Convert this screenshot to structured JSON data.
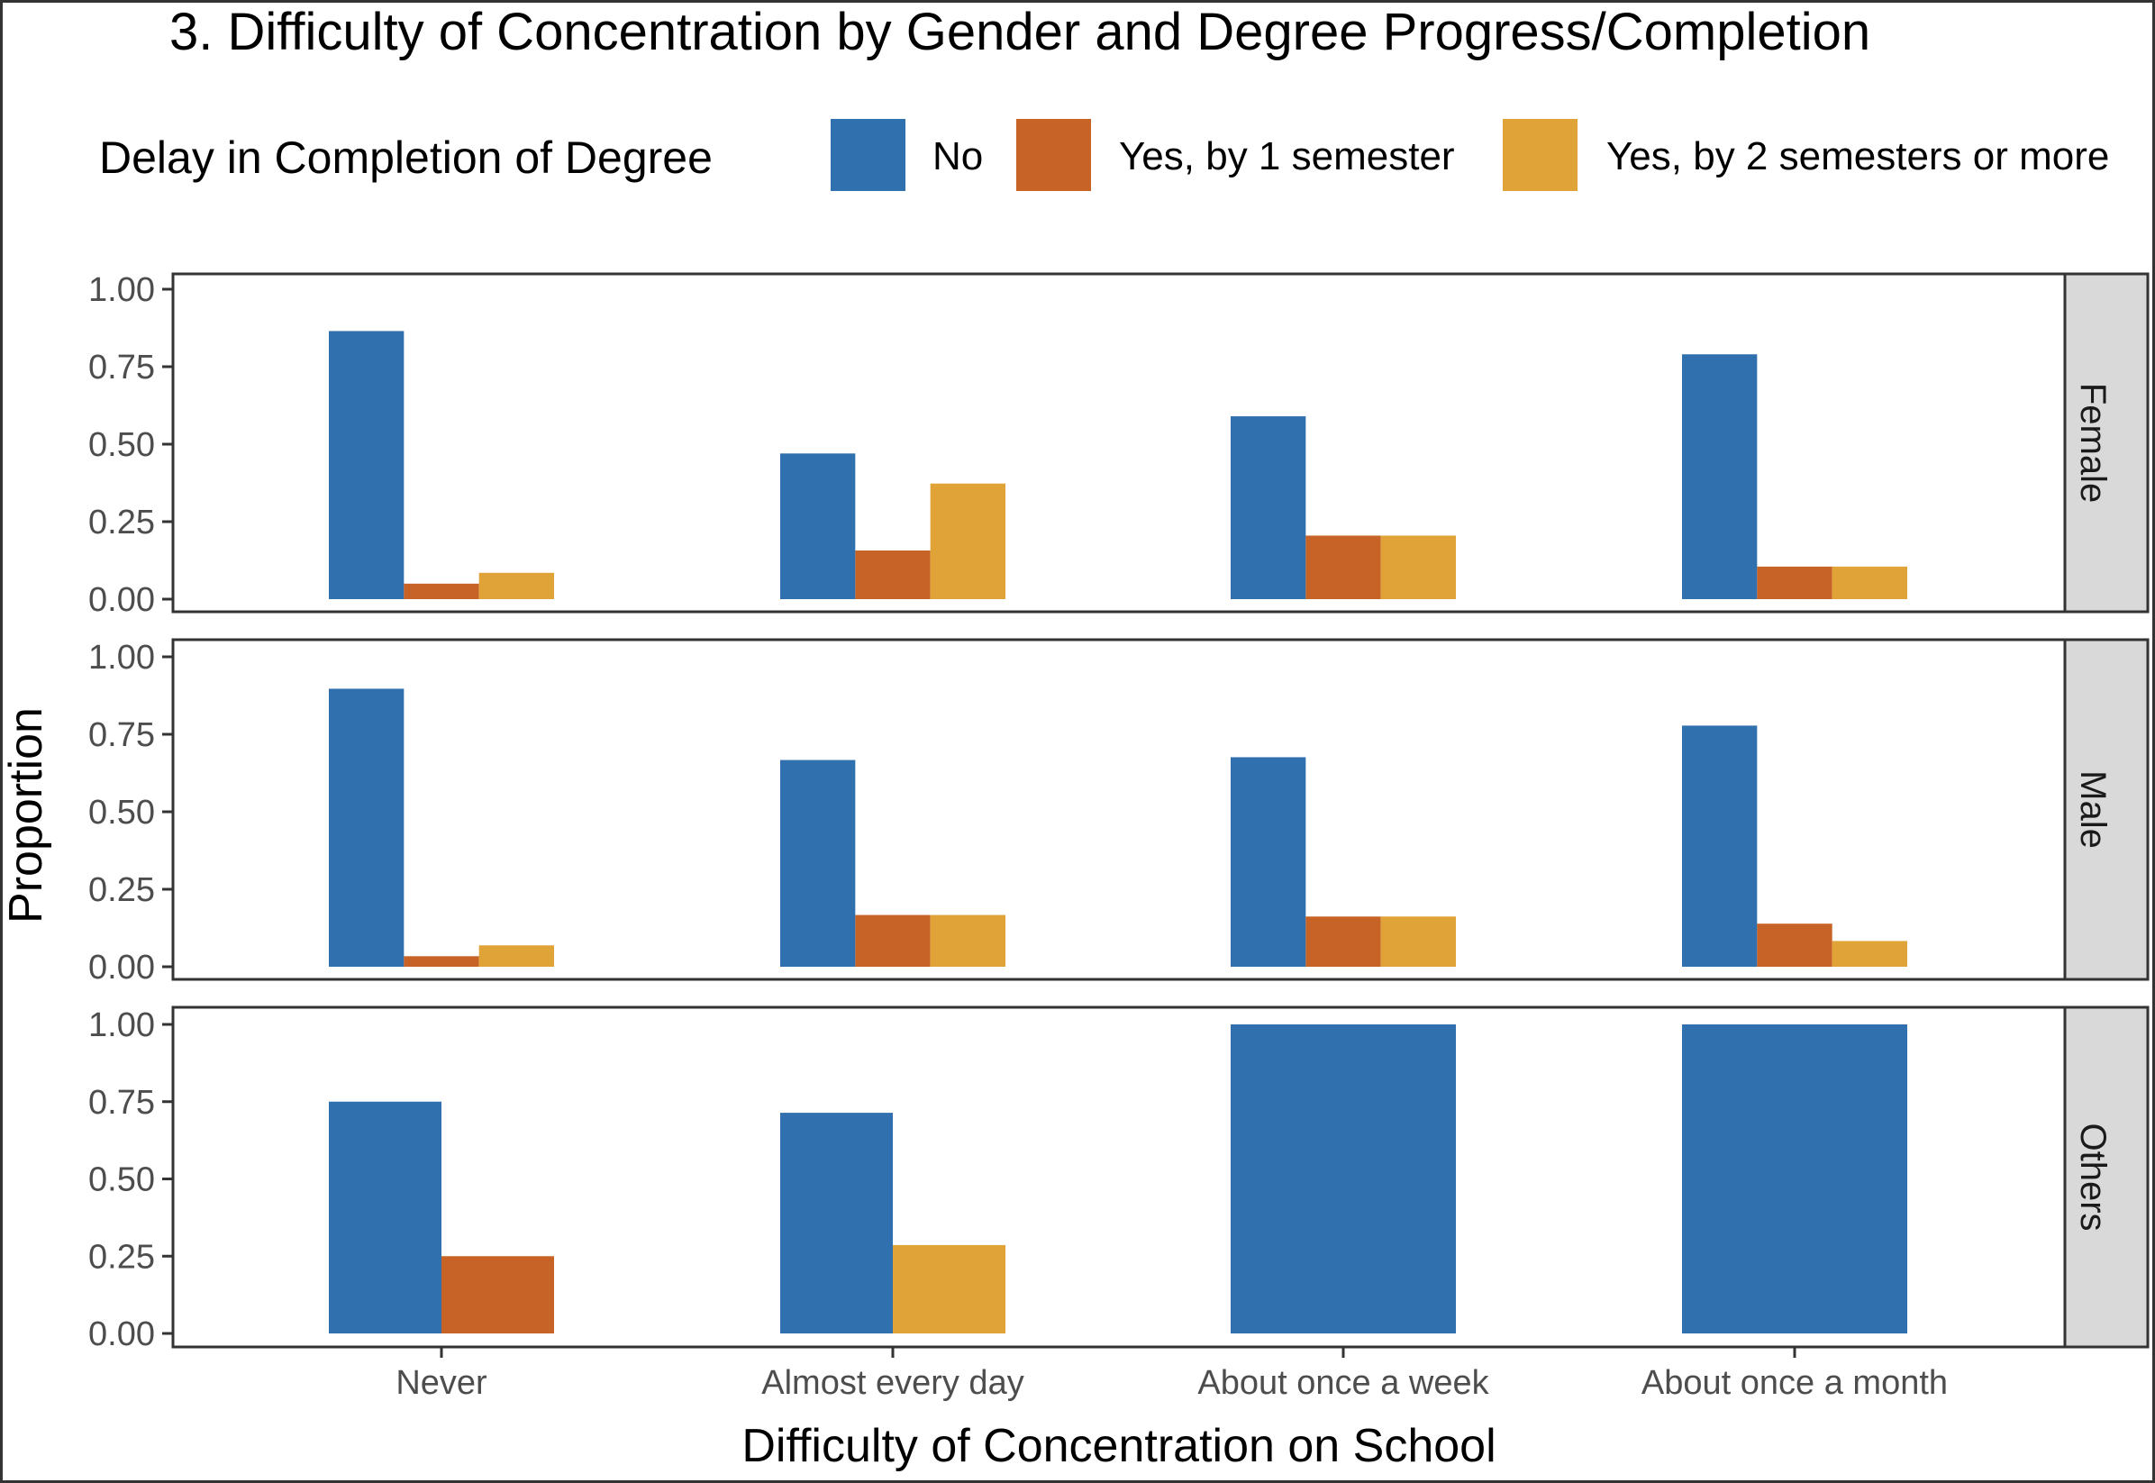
{
  "chart_data": {
    "type": "bar",
    "title": "3. Difficulty of Concentration by Gender and Degree Progress/Completion",
    "xlabel": "Difficulty of Concentration on School",
    "ylabel": "Proportion",
    "ylim": [
      0,
      1
    ],
    "yticks": [
      "0.00",
      "0.25",
      "0.50",
      "0.75",
      "1.00"
    ],
    "categories": [
      "Never",
      "Almost every day",
      "About once a week",
      "About once a month"
    ],
    "legend": {
      "title": "Delay in Completion of Degree",
      "position": "top",
      "items": [
        {
          "key": "No",
          "label": "No",
          "color": "#3070ae"
        },
        {
          "key": "1sem",
          "label": "Yes, by 1 semester",
          "color": "#c76326"
        },
        {
          "key": "2sem",
          "label": "Yes, by 2 semesters or more",
          "color": "#dfa337"
        }
      ]
    },
    "facets": [
      {
        "label": "Female",
        "bars": [
          [
            {
              "series": "No",
              "value": 0.865
            },
            {
              "series": "1sem",
              "value": 0.05
            },
            {
              "series": "2sem",
              "value": 0.085
            }
          ],
          [
            {
              "series": "No",
              "value": 0.47
            },
            {
              "series": "1sem",
              "value": 0.157
            },
            {
              "series": "2sem",
              "value": 0.373
            }
          ],
          [
            {
              "series": "No",
              "value": 0.59
            },
            {
              "series": "1sem",
              "value": 0.205
            },
            {
              "series": "2sem",
              "value": 0.205
            }
          ],
          [
            {
              "series": "No",
              "value": 0.79
            },
            {
              "series": "1sem",
              "value": 0.105
            },
            {
              "series": "2sem",
              "value": 0.105
            }
          ]
        ]
      },
      {
        "label": "Male",
        "bars": [
          [
            {
              "series": "No",
              "value": 0.897
            },
            {
              "series": "1sem",
              "value": 0.034
            },
            {
              "series": "2sem",
              "value": 0.069
            }
          ],
          [
            {
              "series": "No",
              "value": 0.667
            },
            {
              "series": "1sem",
              "value": 0.167
            },
            {
              "series": "2sem",
              "value": 0.167
            }
          ],
          [
            {
              "series": "No",
              "value": 0.676
            },
            {
              "series": "1sem",
              "value": 0.162
            },
            {
              "series": "2sem",
              "value": 0.162
            }
          ],
          [
            {
              "series": "No",
              "value": 0.778
            },
            {
              "series": "1sem",
              "value": 0.139
            },
            {
              "series": "2sem",
              "value": 0.083
            }
          ]
        ]
      },
      {
        "label": "Others",
        "bars": [
          [
            {
              "series": "No",
              "value": 0.75
            },
            {
              "series": "1sem",
              "value": 0.25
            }
          ],
          [
            {
              "series": "No",
              "value": 0.714
            },
            {
              "series": "2sem",
              "value": 0.286
            }
          ],
          [
            {
              "series": "No",
              "value": 1.0
            }
          ],
          [
            {
              "series": "No",
              "value": 1.0
            }
          ]
        ]
      }
    ]
  }
}
